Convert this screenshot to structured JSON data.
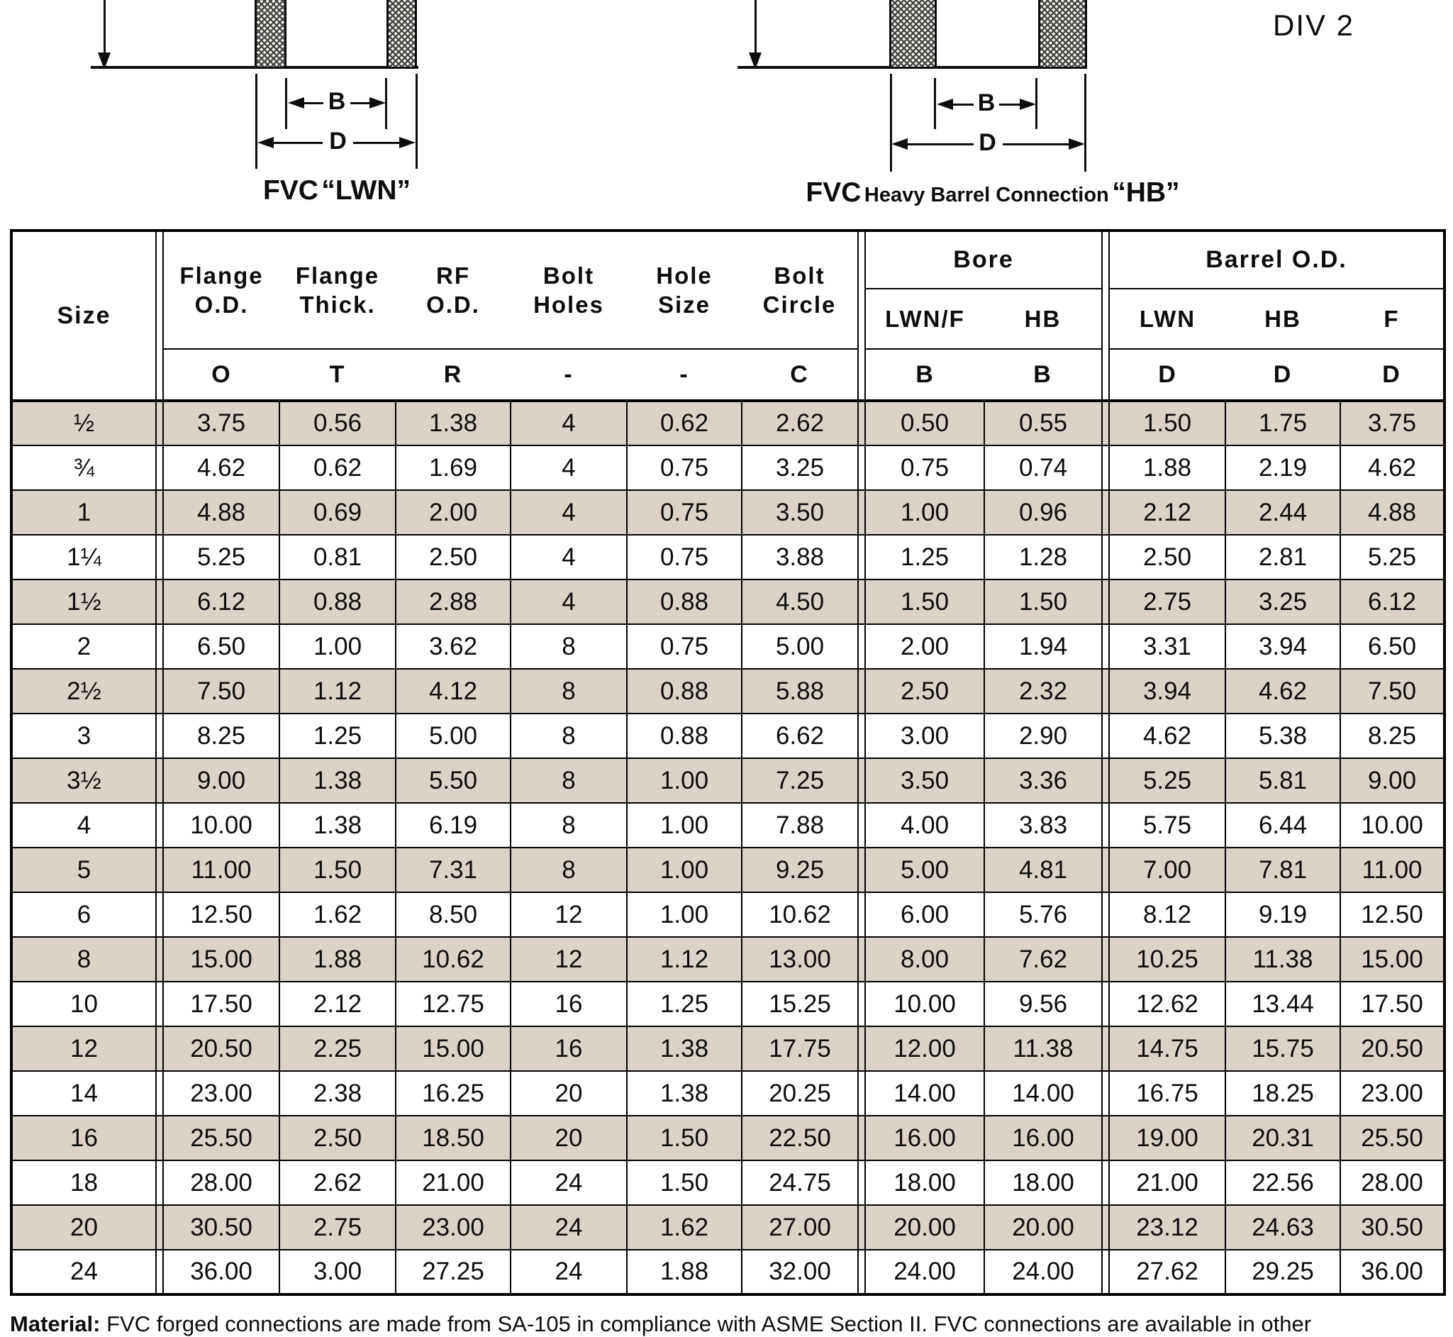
{
  "header_area": {
    "div_label": "DIV 2"
  },
  "diagrams": {
    "left": {
      "dim_b": "B",
      "dim_d": "D",
      "caption_fvc": "FVC",
      "caption_name": "“LWN”"
    },
    "right": {
      "dim_b": "B",
      "dim_d": "D",
      "caption_fvc": "FVC",
      "caption_mid": "Heavy Barrel Connection",
      "caption_name": "“HB”"
    }
  },
  "table": {
    "header": {
      "size_label": "Size",
      "columns": [
        {
          "line1": "Flange",
          "line2": "O.D.",
          "letter": "O"
        },
        {
          "line1": "Flange",
          "line2": "Thick.",
          "letter": "T"
        },
        {
          "line1": "RF",
          "line2": "O.D.",
          "letter": "R"
        },
        {
          "line1": "Bolt",
          "line2": "Holes",
          "letter": "-"
        },
        {
          "line1": "Hole",
          "line2": "Size",
          "letter": "-"
        },
        {
          "line1": "Bolt",
          "line2": "Circle",
          "letter": "C"
        }
      ],
      "bore": {
        "title": "Bore",
        "subs": [
          "LWN/F",
          "HB"
        ],
        "letters": [
          "B",
          "B"
        ]
      },
      "barrel": {
        "title": "Barrel O.D.",
        "subs": [
          "LWN",
          "HB",
          "F"
        ],
        "letters": [
          "D",
          "D",
          "D"
        ]
      }
    },
    "rows": [
      {
        "size": "½",
        "shaded": true,
        "values": [
          "3.75",
          "0.56",
          "1.38",
          "4",
          "0.62",
          "2.62",
          "0.50",
          "0.55",
          "1.50",
          "1.75",
          "3.75"
        ]
      },
      {
        "size": "¾",
        "shaded": false,
        "values": [
          "4.62",
          "0.62",
          "1.69",
          "4",
          "0.75",
          "3.25",
          "0.75",
          "0.74",
          "1.88",
          "2.19",
          "4.62"
        ]
      },
      {
        "size": "1",
        "shaded": true,
        "values": [
          "4.88",
          "0.69",
          "2.00",
          "4",
          "0.75",
          "3.50",
          "1.00",
          "0.96",
          "2.12",
          "2.44",
          "4.88"
        ]
      },
      {
        "size": "1¼",
        "shaded": false,
        "values": [
          "5.25",
          "0.81",
          "2.50",
          "4",
          "0.75",
          "3.88",
          "1.25",
          "1.28",
          "2.50",
          "2.81",
          "5.25"
        ]
      },
      {
        "size": "1½",
        "shaded": true,
        "values": [
          "6.12",
          "0.88",
          "2.88",
          "4",
          "0.88",
          "4.50",
          "1.50",
          "1.50",
          "2.75",
          "3.25",
          "6.12"
        ]
      },
      {
        "size": "2",
        "shaded": false,
        "values": [
          "6.50",
          "1.00",
          "3.62",
          "8",
          "0.75",
          "5.00",
          "2.00",
          "1.94",
          "3.31",
          "3.94",
          "6.50"
        ]
      },
      {
        "size": "2½",
        "shaded": true,
        "values": [
          "7.50",
          "1.12",
          "4.12",
          "8",
          "0.88",
          "5.88",
          "2.50",
          "2.32",
          "3.94",
          "4.62",
          "7.50"
        ]
      },
      {
        "size": "3",
        "shaded": false,
        "values": [
          "8.25",
          "1.25",
          "5.00",
          "8",
          "0.88",
          "6.62",
          "3.00",
          "2.90",
          "4.62",
          "5.38",
          "8.25"
        ]
      },
      {
        "size": "3½",
        "shaded": true,
        "values": [
          "9.00",
          "1.38",
          "5.50",
          "8",
          "1.00",
          "7.25",
          "3.50",
          "3.36",
          "5.25",
          "5.81",
          "9.00"
        ]
      },
      {
        "size": "4",
        "shaded": false,
        "values": [
          "10.00",
          "1.38",
          "6.19",
          "8",
          "1.00",
          "7.88",
          "4.00",
          "3.83",
          "5.75",
          "6.44",
          "10.00"
        ]
      },
      {
        "size": "5",
        "shaded": true,
        "values": [
          "11.00",
          "1.50",
          "7.31",
          "8",
          "1.00",
          "9.25",
          "5.00",
          "4.81",
          "7.00",
          "7.81",
          "11.00"
        ]
      },
      {
        "size": "6",
        "shaded": false,
        "values": [
          "12.50",
          "1.62",
          "8.50",
          "12",
          "1.00",
          "10.62",
          "6.00",
          "5.76",
          "8.12",
          "9.19",
          "12.50"
        ]
      },
      {
        "size": "8",
        "shaded": true,
        "values": [
          "15.00",
          "1.88",
          "10.62",
          "12",
          "1.12",
          "13.00",
          "8.00",
          "7.62",
          "10.25",
          "11.38",
          "15.00"
        ]
      },
      {
        "size": "10",
        "shaded": false,
        "values": [
          "17.50",
          "2.12",
          "12.75",
          "16",
          "1.25",
          "15.25",
          "10.00",
          "9.56",
          "12.62",
          "13.44",
          "17.50"
        ]
      },
      {
        "size": "12",
        "shaded": true,
        "values": [
          "20.50",
          "2.25",
          "15.00",
          "16",
          "1.38",
          "17.75",
          "12.00",
          "11.38",
          "14.75",
          "15.75",
          "20.50"
        ]
      },
      {
        "size": "14",
        "shaded": false,
        "values": [
          "23.00",
          "2.38",
          "16.25",
          "20",
          "1.38",
          "20.25",
          "14.00",
          "14.00",
          "16.75",
          "18.25",
          "23.00"
        ]
      },
      {
        "size": "16",
        "shaded": true,
        "values": [
          "25.50",
          "2.50",
          "18.50",
          "20",
          "1.50",
          "22.50",
          "16.00",
          "16.00",
          "19.00",
          "20.31",
          "25.50"
        ]
      },
      {
        "size": "18",
        "shaded": false,
        "values": [
          "28.00",
          "2.62",
          "21.00",
          "24",
          "1.50",
          "24.75",
          "18.00",
          "18.00",
          "21.00",
          "22.56",
          "28.00"
        ]
      },
      {
        "size": "20",
        "shaded": true,
        "values": [
          "30.50",
          "2.75",
          "23.00",
          "24",
          "1.62",
          "27.00",
          "20.00",
          "20.00",
          "23.12",
          "24.63",
          "30.50"
        ]
      },
      {
        "size": "24",
        "shaded": false,
        "values": [
          "36.00",
          "3.00",
          "27.25",
          "24",
          "1.88",
          "32.00",
          "24.00",
          "24.00",
          "27.62",
          "29.25",
          "36.00"
        ]
      }
    ]
  },
  "footnote": {
    "label": "Material:",
    "text": " FVC forged connections are made from SA-105 in compliance with ASME Section II. FVC connections are available in other"
  },
  "colors": {
    "row_shade": "#dcd3c8",
    "border": "#000000"
  }
}
